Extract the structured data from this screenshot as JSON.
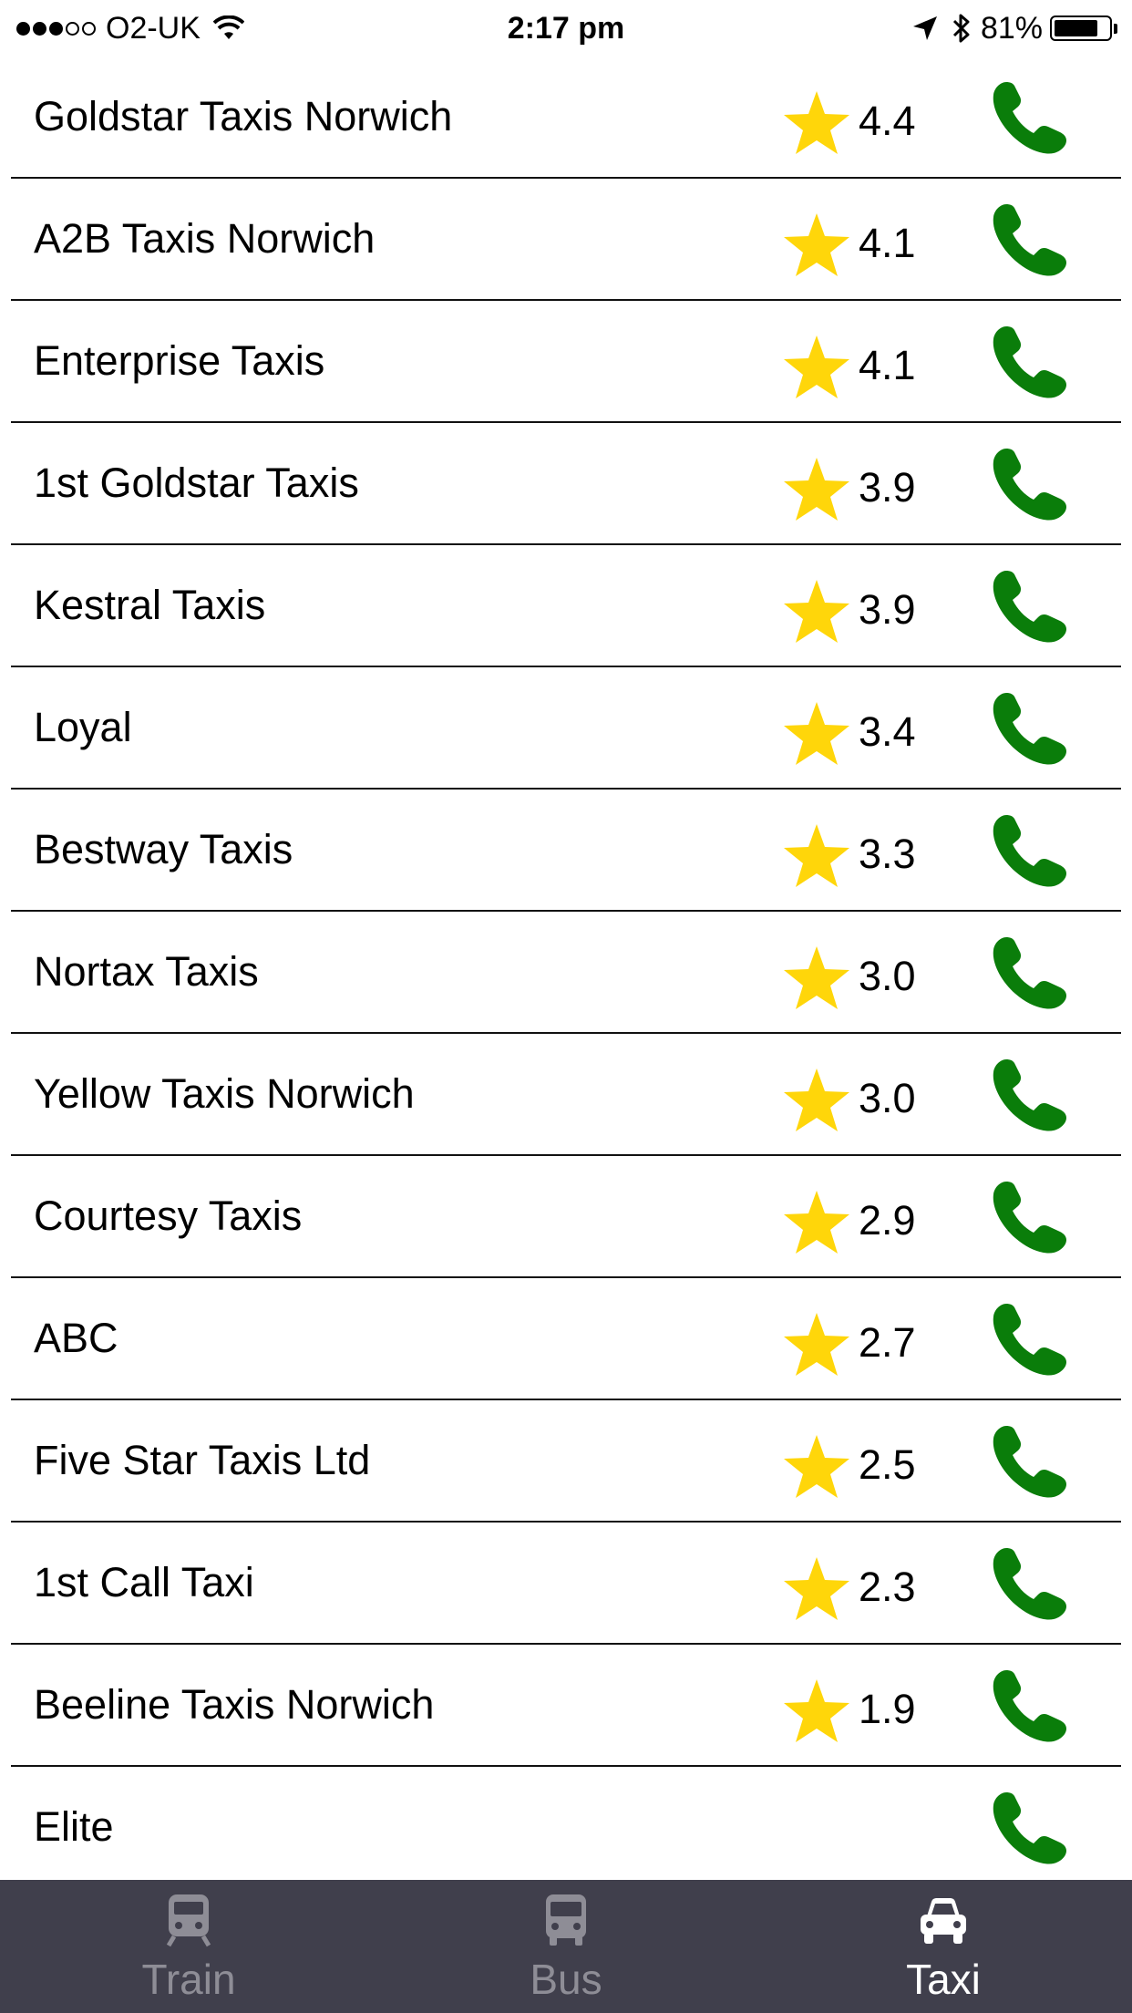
{
  "status_bar": {
    "carrier": "O2-UK",
    "time": "2:17 pm",
    "battery_percent": "81%",
    "battery_level": 0.81
  },
  "colors": {
    "star": "#ffd60a",
    "phone": "#0a7d0a",
    "tab_bar": "#403f4c",
    "tab_active": "#ffffff",
    "tab_inactive": "#8e8d96"
  },
  "taxis": [
    {
      "name": "Goldstar Taxis Norwich",
      "rating": "4.4"
    },
    {
      "name": "A2B Taxis Norwich",
      "rating": "4.1"
    },
    {
      "name": "Enterprise Taxis",
      "rating": "4.1"
    },
    {
      "name": "1st Goldstar Taxis",
      "rating": "3.9"
    },
    {
      "name": "Kestral Taxis",
      "rating": "3.9"
    },
    {
      "name": "Loyal",
      "rating": "3.4"
    },
    {
      "name": "Bestway Taxis",
      "rating": "3.3"
    },
    {
      "name": "Nortax Taxis",
      "rating": "3.0"
    },
    {
      "name": "Yellow Taxis Norwich",
      "rating": "3.0"
    },
    {
      "name": "Courtesy Taxis",
      "rating": "2.9"
    },
    {
      "name": "ABC",
      "rating": "2.7"
    },
    {
      "name": "Five Star Taxis Ltd",
      "rating": "2.5"
    },
    {
      "name": "1st Call Taxi",
      "rating": "2.3"
    },
    {
      "name": "Beeline Taxis Norwich",
      "rating": "1.9"
    },
    {
      "name": "Elite",
      "rating": ""
    }
  ],
  "tabs": [
    {
      "label": "Train",
      "icon": "train-icon",
      "active": false
    },
    {
      "label": "Bus",
      "icon": "bus-icon",
      "active": false
    },
    {
      "label": "Taxi",
      "icon": "car-icon",
      "active": true
    }
  ]
}
